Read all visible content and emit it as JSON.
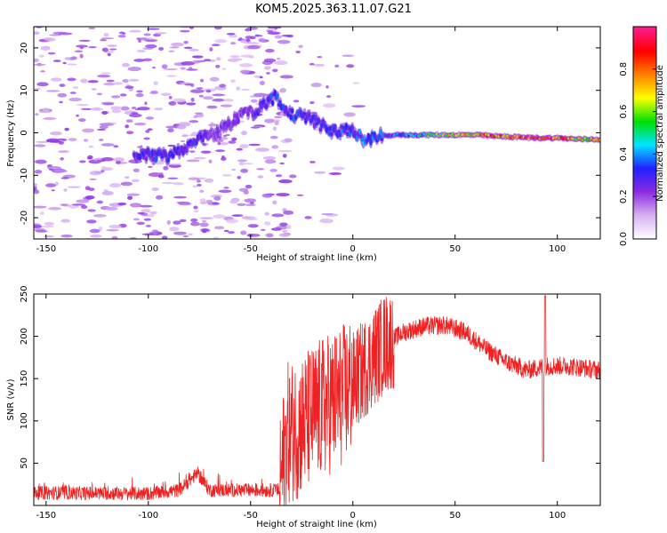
{
  "title": "KOM5.2025.363.11.07.G21",
  "chart_data": [
    {
      "type": "heatmap",
      "xlabel": "Height of straight line (km)",
      "ylabel": "Frequency (Hz)",
      "xlim": [
        -156,
        121
      ],
      "ylim": [
        -25,
        25
      ],
      "xticks": [
        -150,
        -100,
        -50,
        0,
        50,
        100
      ],
      "yticks": [
        -20,
        -10,
        0,
        10,
        20
      ],
      "colorbar": {
        "label": "Normalized spectral amplitude",
        "range": [
          0,
          1
        ],
        "ticks": [
          "0.0",
          "0.2",
          "0.4",
          "0.6",
          "0.8"
        ],
        "colors": [
          "#ffffff",
          "#d7b0f2",
          "#8a2be2",
          "#2020ff",
          "#00e5ff",
          "#00e000",
          "#ffff00",
          "#ff8000",
          "#ff0000",
          "#ff1a8c"
        ]
      },
      "signal_track": [
        {
          "x": -107,
          "y": -5,
          "amp": 0.25
        },
        {
          "x": -98,
          "y": -5.5,
          "amp": 0.3
        },
        {
          "x": -90,
          "y": -5.5,
          "amp": 0.28
        },
        {
          "x": -83,
          "y": -3.5,
          "amp": 0.3
        },
        {
          "x": -77,
          "y": -2,
          "amp": 0.3
        },
        {
          "x": -70,
          "y": -1,
          "amp": 0.22
        },
        {
          "x": -55,
          "y": 4,
          "amp": 0.2
        },
        {
          "x": -46,
          "y": 5.5,
          "amp": 0.28
        },
        {
          "x": -38,
          "y": 8.5,
          "amp": 0.32
        },
        {
          "x": -34,
          "y": 6,
          "amp": 0.3
        },
        {
          "x": -32,
          "y": 4.5,
          "amp": 0.32
        },
        {
          "x": -25,
          "y": 4,
          "amp": 0.32
        },
        {
          "x": -20,
          "y": 3,
          "amp": 0.3
        },
        {
          "x": -15,
          "y": 1.5,
          "amp": 0.28
        },
        {
          "x": -10,
          "y": 0.5,
          "amp": 0.32
        },
        {
          "x": -5,
          "y": 0.5,
          "amp": 0.32
        },
        {
          "x": 0,
          "y": 0.5,
          "amp": 0.3
        },
        {
          "x": 5,
          "y": -1.5,
          "amp": 0.35
        },
        {
          "x": 12,
          "y": -1,
          "amp": 0.32
        },
        {
          "x": 20,
          "y": -0.5,
          "amp": 0.35
        },
        {
          "x": 30,
          "y": -0.5,
          "amp": 0.4
        },
        {
          "x": 40,
          "y": -0.5,
          "amp": 0.55
        },
        {
          "x": 50,
          "y": -0.5,
          "amp": 0.6
        },
        {
          "x": 60,
          "y": -0.5,
          "amp": 0.75
        },
        {
          "x": 70,
          "y": -0.8,
          "amp": 0.8
        },
        {
          "x": 80,
          "y": -1,
          "amp": 0.85
        },
        {
          "x": 90,
          "y": -1.2,
          "amp": 0.9
        },
        {
          "x": 100,
          "y": -1.2,
          "amp": 0.85
        },
        {
          "x": 110,
          "y": -1.5,
          "amp": 0.7
        },
        {
          "x": 121,
          "y": -1.5,
          "amp": 0.7
        }
      ]
    },
    {
      "type": "line",
      "xlabel": "Height of straight line (km)",
      "ylabel": "SNR (v/v)",
      "xlim": [
        -156,
        121
      ],
      "ylim": [
        0,
        250
      ],
      "xticks": [
        -150,
        -100,
        -50,
        0,
        50,
        100
      ],
      "yticks": [
        50,
        100,
        150,
        200,
        250
      ],
      "color": "#ee2222",
      "trend": [
        {
          "x": -156,
          "y": 15
        },
        {
          "x": -100,
          "y": 14
        },
        {
          "x": -85,
          "y": 18
        },
        {
          "x": -76,
          "y": 38
        },
        {
          "x": -70,
          "y": 18
        },
        {
          "x": -40,
          "y": 18
        },
        {
          "x": -36,
          "y": 18
        },
        {
          "x": -32,
          "y": 85
        },
        {
          "x": -25,
          "y": 95
        },
        {
          "x": -15,
          "y": 115
        },
        {
          "x": -5,
          "y": 130
        },
        {
          "x": 5,
          "y": 160
        },
        {
          "x": 15,
          "y": 190
        },
        {
          "x": 25,
          "y": 205
        },
        {
          "x": 35,
          "y": 212
        },
        {
          "x": 45,
          "y": 213
        },
        {
          "x": 55,
          "y": 205
        },
        {
          "x": 65,
          "y": 185
        },
        {
          "x": 75,
          "y": 170
        },
        {
          "x": 85,
          "y": 160
        },
        {
          "x": 95,
          "y": 165
        },
        {
          "x": 105,
          "y": 165
        },
        {
          "x": 121,
          "y": 160
        }
      ],
      "events": [
        {
          "x": 93,
          "y": 52
        },
        {
          "x": 94,
          "y": 248
        }
      ]
    }
  ]
}
